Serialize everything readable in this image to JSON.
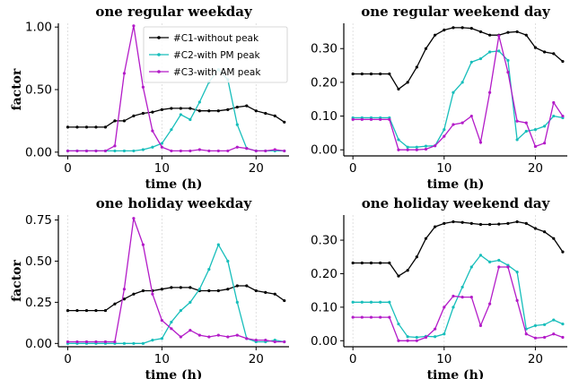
{
  "figure": {
    "legend_location": "top-right of first panel"
  },
  "chart_data": [
    {
      "type": "line",
      "title": "one regular weekday",
      "xlabel": "time (h)",
      "ylabel": "factor",
      "xlim": [
        -1,
        23.5
      ],
      "ylim": [
        -0.03,
        1.03
      ],
      "xticks": [
        "0",
        "10",
        "20"
      ],
      "yticks": [
        "0.00",
        "0.50",
        "1.00"
      ],
      "grid": "vertical dashed",
      "show_legend": true,
      "x": [
        0,
        1,
        2,
        3,
        4,
        5,
        6,
        7,
        8,
        9,
        10,
        11,
        12,
        13,
        14,
        15,
        16,
        17,
        18,
        19,
        20,
        21,
        22,
        23
      ],
      "series": [
        {
          "name": "#C1-without peak",
          "color": "#000000",
          "values": [
            0.2,
            0.2,
            0.2,
            0.2,
            0.2,
            0.25,
            0.25,
            0.29,
            0.31,
            0.32,
            0.34,
            0.35,
            0.35,
            0.35,
            0.33,
            0.33,
            0.33,
            0.34,
            0.36,
            0.37,
            0.33,
            0.31,
            0.29,
            0.24
          ]
        },
        {
          "name": "#C2-with PM peak",
          "color": "#17bebb",
          "values": [
            0.01,
            0.01,
            0.01,
            0.01,
            0.01,
            0.01,
            0.01,
            0.01,
            0.02,
            0.04,
            0.07,
            0.18,
            0.3,
            0.26,
            0.4,
            0.56,
            0.66,
            0.58,
            0.22,
            0.03,
            0.01,
            0.01,
            0.01,
            0.01
          ]
        },
        {
          "name": "#C3-with AM peak",
          "color": "#b31bc8",
          "values": [
            0.01,
            0.01,
            0.01,
            0.01,
            0.01,
            0.05,
            0.63,
            1.01,
            0.52,
            0.17,
            0.04,
            0.01,
            0.01,
            0.01,
            0.02,
            0.01,
            0.01,
            0.01,
            0.04,
            0.03,
            0.01,
            0.01,
            0.02,
            0.01
          ]
        }
      ]
    },
    {
      "type": "line",
      "title": "one regular weekend day",
      "xlabel": "time (h)",
      "ylabel": "",
      "xlim": [
        -1,
        23.5
      ],
      "ylim": [
        -0.018,
        0.375
      ],
      "xticks": [
        "0",
        "10",
        "20"
      ],
      "yticks": [
        "0.00",
        "0.10",
        "0.20",
        "0.30"
      ],
      "grid": "vertical dashed",
      "show_legend": false,
      "x": [
        0,
        1,
        2,
        3,
        4,
        5,
        6,
        7,
        8,
        9,
        10,
        11,
        12,
        13,
        14,
        15,
        16,
        17,
        18,
        19,
        20,
        21,
        22,
        23
      ],
      "series": [
        {
          "name": "#C1-without peak",
          "color": "#000000",
          "values": [
            0.225,
            0.225,
            0.225,
            0.225,
            0.225,
            0.18,
            0.2,
            0.245,
            0.3,
            0.34,
            0.355,
            0.362,
            0.362,
            0.36,
            0.35,
            0.34,
            0.34,
            0.348,
            0.35,
            0.34,
            0.303,
            0.29,
            0.285,
            0.262
          ]
        },
        {
          "name": "#C2-with PM peak",
          "color": "#17bebb",
          "values": [
            0.095,
            0.095,
            0.095,
            0.095,
            0.095,
            0.03,
            0.008,
            0.008,
            0.011,
            0.012,
            0.06,
            0.17,
            0.2,
            0.26,
            0.27,
            0.29,
            0.293,
            0.265,
            0.03,
            0.055,
            0.06,
            0.07,
            0.1,
            0.095
          ]
        },
        {
          "name": "#C3-with AM peak",
          "color": "#b31bc8",
          "values": [
            0.09,
            0.09,
            0.09,
            0.09,
            0.09,
            0.0,
            0.0,
            0.0,
            0.002,
            0.012,
            0.04,
            0.075,
            0.08,
            0.1,
            0.022,
            0.17,
            0.338,
            0.23,
            0.085,
            0.08,
            0.01,
            0.02,
            0.14,
            0.1
          ]
        }
      ]
    },
    {
      "type": "line",
      "title": "one holiday weekday",
      "xlabel": "time (h)",
      "ylabel": "factor",
      "xlim": [
        -1,
        23.5
      ],
      "ylim": [
        -0.02,
        0.78
      ],
      "xticks": [
        "0",
        "10",
        "20"
      ],
      "yticks": [
        "0.00",
        "0.25",
        "0.50",
        "0.75"
      ],
      "grid": "vertical dashed",
      "show_legend": false,
      "x": [
        0,
        1,
        2,
        3,
        4,
        5,
        6,
        7,
        8,
        9,
        10,
        11,
        12,
        13,
        14,
        15,
        16,
        17,
        18,
        19,
        20,
        21,
        22,
        23
      ],
      "series": [
        {
          "name": "#C1-without peak",
          "color": "#000000",
          "values": [
            0.2,
            0.2,
            0.2,
            0.2,
            0.2,
            0.24,
            0.27,
            0.3,
            0.32,
            0.32,
            0.33,
            0.34,
            0.34,
            0.34,
            0.32,
            0.32,
            0.32,
            0.33,
            0.35,
            0.35,
            0.32,
            0.31,
            0.3,
            0.26
          ]
        },
        {
          "name": "#C2-with PM peak",
          "color": "#17bebb",
          "values": [
            0.0,
            0.0,
            0.0,
            0.0,
            0.0,
            0.0,
            0.0,
            0.0,
            0.0,
            0.02,
            0.03,
            0.13,
            0.2,
            0.25,
            0.33,
            0.45,
            0.6,
            0.5,
            0.25,
            0.03,
            0.01,
            0.01,
            0.02,
            0.01
          ]
        },
        {
          "name": "#C3-with AM peak",
          "color": "#b31bc8",
          "values": [
            0.01,
            0.01,
            0.01,
            0.01,
            0.01,
            0.01,
            0.33,
            0.76,
            0.6,
            0.3,
            0.14,
            0.09,
            0.04,
            0.08,
            0.05,
            0.04,
            0.05,
            0.04,
            0.05,
            0.03,
            0.02,
            0.02,
            0.01,
            0.01
          ]
        }
      ]
    },
    {
      "type": "line",
      "title": "one holiday weekend day",
      "xlabel": "time (h)",
      "ylabel": "",
      "xlim": [
        -1,
        23.5
      ],
      "ylim": [
        -0.018,
        0.375
      ],
      "xticks": [
        "0",
        "10",
        "20"
      ],
      "yticks": [
        "0.00",
        "0.10",
        "0.20",
        "0.30"
      ],
      "grid": "vertical dashed",
      "show_legend": false,
      "x": [
        0,
        1,
        2,
        3,
        4,
        5,
        6,
        7,
        8,
        9,
        10,
        11,
        12,
        13,
        14,
        15,
        16,
        17,
        18,
        19,
        20,
        21,
        22,
        23
      ],
      "series": [
        {
          "name": "#C1-without peak",
          "color": "#000000",
          "values": [
            0.232,
            0.232,
            0.232,
            0.232,
            0.232,
            0.193,
            0.21,
            0.25,
            0.305,
            0.34,
            0.35,
            0.355,
            0.353,
            0.35,
            0.347,
            0.347,
            0.348,
            0.35,
            0.355,
            0.35,
            0.335,
            0.325,
            0.305,
            0.265
          ]
        },
        {
          "name": "#C2-with PM peak",
          "color": "#17bebb",
          "values": [
            0.115,
            0.115,
            0.115,
            0.115,
            0.115,
            0.05,
            0.012,
            0.01,
            0.013,
            0.012,
            0.02,
            0.1,
            0.16,
            0.22,
            0.255,
            0.235,
            0.24,
            0.225,
            0.205,
            0.035,
            0.045,
            0.048,
            0.062,
            0.05
          ]
        },
        {
          "name": "#C3-with AM peak",
          "color": "#b31bc8",
          "values": [
            0.07,
            0.07,
            0.07,
            0.07,
            0.07,
            0.0,
            0.0,
            0.0,
            0.01,
            0.035,
            0.1,
            0.133,
            0.13,
            0.13,
            0.045,
            0.11,
            0.22,
            0.22,
            0.12,
            0.02,
            0.008,
            0.01,
            0.02,
            0.01
          ]
        }
      ]
    }
  ]
}
